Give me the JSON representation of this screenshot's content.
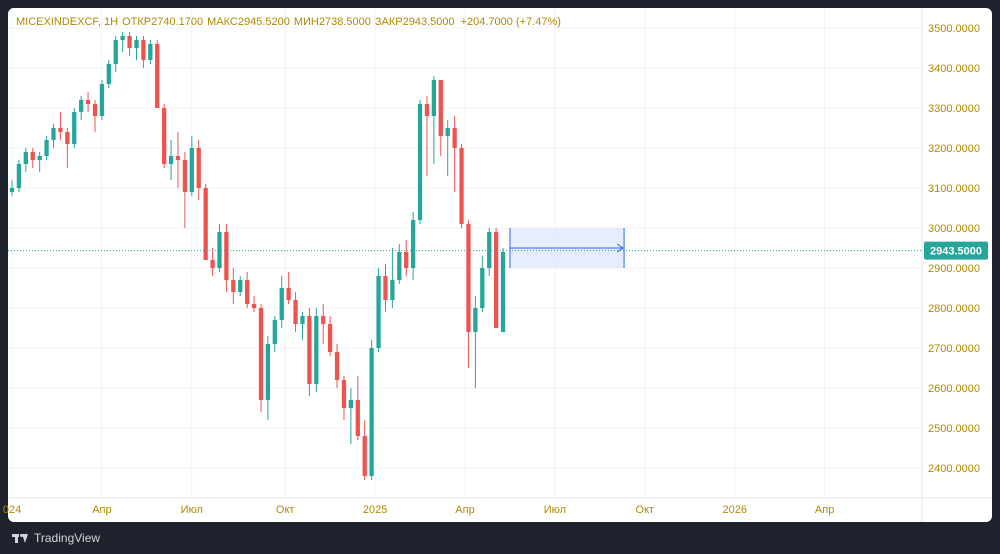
{
  "legend": {
    "symbol": "MICEXINDEXCF, 1H",
    "open_label": "ОТКР",
    "open": "2740.1700",
    "high_label": "МАКС",
    "high": "2945.5200",
    "low_label": "МИН",
    "low": "2738.5000",
    "close_label": "ЗАКР",
    "close": "2943.5000",
    "change": "+204.7000 (+7.47%)"
  },
  "branding": {
    "name": "TradingView"
  },
  "colors": {
    "up": "#26a69a",
    "down": "#ef5350",
    "axis_text": "#b08a00",
    "grid": "#f0f3fa",
    "price_line": "#26a69a",
    "projection_fill": "#e0e8fb",
    "projection_border": "#2962ff"
  },
  "chart_data": {
    "type": "candlestick",
    "y_ticks": [
      "2400.0000",
      "2500.0000",
      "2600.0000",
      "2700.0000",
      "2800.0000",
      "2900.0000",
      "3000.0000",
      "3100.0000",
      "3200.0000",
      "3300.0000",
      "3400.0000",
      "3500.0000"
    ],
    "ylim": [
      2325,
      3550
    ],
    "x_ticks": [
      {
        "label": "024",
        "t": 0
      },
      {
        "label": "Апр",
        "t": 13
      },
      {
        "label": "Июл",
        "t": 26
      },
      {
        "label": "Окт",
        "t": 39.5
      },
      {
        "label": "2025",
        "t": 52.5
      },
      {
        "label": "Апр",
        "t": 65.5
      },
      {
        "label": "Июл",
        "t": 78.5
      },
      {
        "label": "Окт",
        "t": 91.5
      },
      {
        "label": "2026",
        "t": 104.5
      },
      {
        "label": "Апр",
        "t": 117.5
      }
    ],
    "xlim": [
      0,
      131
    ],
    "current_price": "2943.5000",
    "current_value": 2943.5,
    "projection": {
      "t_start": 72,
      "t_end": 88.5,
      "top": 3000,
      "bottom": 2900,
      "arrow_level": 2950
    },
    "candles": [
      [
        0,
        3090,
        3120,
        3080,
        3100
      ],
      [
        1,
        3100,
        3170,
        3090,
        3160
      ],
      [
        2,
        3160,
        3200,
        3140,
        3190
      ],
      [
        3,
        3190,
        3200,
        3150,
        3170
      ],
      [
        4,
        3170,
        3190,
        3140,
        3180
      ],
      [
        5,
        3180,
        3230,
        3170,
        3220
      ],
      [
        6,
        3220,
        3260,
        3200,
        3250
      ],
      [
        7,
        3250,
        3290,
        3220,
        3240
      ],
      [
        8,
        3240,
        3250,
        3150,
        3210
      ],
      [
        9,
        3210,
        3300,
        3200,
        3290
      ],
      [
        10,
        3290,
        3330,
        3270,
        3320
      ],
      [
        11,
        3320,
        3340,
        3290,
        3310
      ],
      [
        12,
        3310,
        3320,
        3240,
        3280
      ],
      [
        13,
        3280,
        3370,
        3270,
        3360
      ],
      [
        14,
        3360,
        3420,
        3350,
        3410
      ],
      [
        15,
        3410,
        3480,
        3390,
        3470
      ],
      [
        16,
        3470,
        3490,
        3440,
        3480
      ],
      [
        17,
        3480,
        3490,
        3430,
        3450
      ],
      [
        18,
        3450,
        3480,
        3420,
        3470
      ],
      [
        19,
        3470,
        3480,
        3400,
        3420
      ],
      [
        20,
        3420,
        3470,
        3410,
        3460
      ],
      [
        21,
        3460,
        3470,
        3300,
        3300
      ],
      [
        22,
        3300,
        3310,
        3150,
        3160
      ],
      [
        23,
        3160,
        3220,
        3120,
        3180
      ],
      [
        24,
        3180,
        3240,
        3100,
        3170
      ],
      [
        25,
        3170,
        3190,
        3000,
        3090
      ],
      [
        26,
        3090,
        3230,
        3080,
        3200
      ],
      [
        27,
        3200,
        3220,
        3070,
        3100
      ],
      [
        28,
        3100,
        3110,
        2920,
        2920
      ],
      [
        29,
        2920,
        2950,
        2880,
        2900
      ],
      [
        30,
        2900,
        3010,
        2890,
        2990
      ],
      [
        31,
        2990,
        3010,
        2840,
        2870
      ],
      [
        32,
        2870,
        2900,
        2810,
        2840
      ],
      [
        33,
        2840,
        2880,
        2830,
        2870
      ],
      [
        34,
        2870,
        2890,
        2800,
        2810
      ],
      [
        35,
        2810,
        2830,
        2790,
        2800
      ],
      [
        36,
        2800,
        2810,
        2540,
        2570
      ],
      [
        37,
        2570,
        2730,
        2520,
        2710
      ],
      [
        38,
        2710,
        2780,
        2690,
        2770
      ],
      [
        39,
        2770,
        2880,
        2750,
        2850
      ],
      [
        40,
        2850,
        2890,
        2810,
        2820
      ],
      [
        41,
        2820,
        2840,
        2740,
        2760
      ],
      [
        42,
        2760,
        2790,
        2720,
        2780
      ],
      [
        43,
        2780,
        2800,
        2580,
        2610
      ],
      [
        44,
        2610,
        2800,
        2590,
        2780
      ],
      [
        45,
        2780,
        2810,
        2710,
        2760
      ],
      [
        46,
        2760,
        2780,
        2680,
        2690
      ],
      [
        47,
        2690,
        2710,
        2600,
        2620
      ],
      [
        48,
        2620,
        2630,
        2520,
        2550
      ],
      [
        49,
        2550,
        2600,
        2460,
        2570
      ],
      [
        50,
        2570,
        2630,
        2470,
        2480
      ],
      [
        51,
        2480,
        2520,
        2370,
        2380
      ],
      [
        52,
        2380,
        2720,
        2370,
        2700
      ],
      [
        53,
        2700,
        2900,
        2690,
        2880
      ],
      [
        54,
        2880,
        2910,
        2790,
        2820
      ],
      [
        55,
        2820,
        2950,
        2800,
        2870
      ],
      [
        56,
        2870,
        2960,
        2860,
        2940
      ],
      [
        57,
        2940,
        2970,
        2880,
        2900
      ],
      [
        58,
        2900,
        3040,
        2870,
        3020
      ],
      [
        59,
        3020,
        3320,
        3010,
        3310
      ],
      [
        60,
        3310,
        3330,
        3130,
        3280
      ],
      [
        61,
        3280,
        3380,
        3160,
        3370
      ],
      [
        62,
        3370,
        3370,
        3180,
        3230
      ],
      [
        63,
        3230,
        3270,
        3130,
        3250
      ],
      [
        64,
        3250,
        3280,
        3090,
        3200
      ],
      [
        65,
        3200,
        3210,
        3000,
        3010
      ],
      [
        66,
        3010,
        3020,
        2650,
        2740
      ],
      [
        67,
        2740,
        2830,
        2600,
        2800
      ],
      [
        68,
        2800,
        2930,
        2790,
        2900
      ],
      [
        69,
        2900,
        3000,
        2880,
        2990
      ],
      [
        70,
        2990,
        3000,
        2750,
        2750
      ],
      [
        71,
        2740,
        2950,
        2740,
        2940
      ]
    ]
  }
}
